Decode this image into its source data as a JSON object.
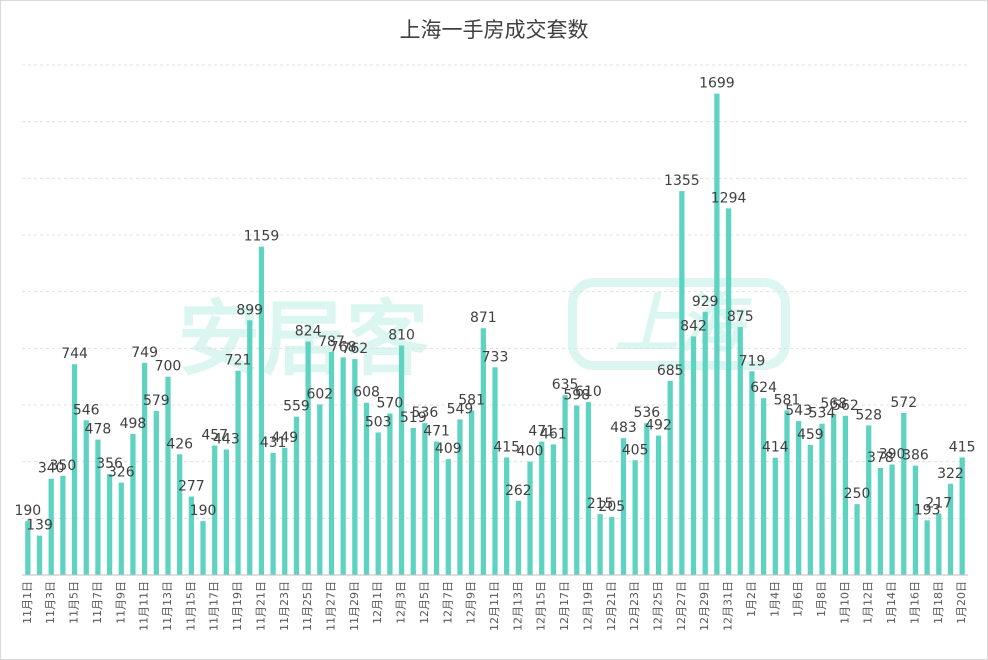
{
  "chart_data": {
    "type": "bar",
    "title": "上海一手房成交套数",
    "xlabel": "",
    "ylabel": "",
    "ylim": [
      0,
      1800
    ],
    "grid": true,
    "bar_color": "#5fd3c2",
    "categories": [
      "11月1日",
      "11月2日",
      "11月3日",
      "11月4日",
      "11月5日",
      "11月6日",
      "11月7日",
      "11月8日",
      "11月9日",
      "11月10日",
      "11月11日",
      "11月12日",
      "11月13日",
      "11月14日",
      "11月15日",
      "11月16日",
      "11月17日",
      "11月18日",
      "11月19日",
      "11月20日",
      "11月21日",
      "11月22日",
      "11月23日",
      "11月24日",
      "11月25日",
      "11月26日",
      "11月27日",
      "11月28日",
      "11月29日",
      "11月30日",
      "12月1日",
      "12月2日",
      "12月3日",
      "12月4日",
      "12月5日",
      "12月6日",
      "12月7日",
      "12月8日",
      "12月9日",
      "12月10日",
      "12月11日",
      "12月12日",
      "12月13日",
      "12月14日",
      "12月15日",
      "12月16日",
      "12月17日",
      "12月18日",
      "12月19日",
      "12月20日",
      "12月21日",
      "12月22日",
      "12月23日",
      "12月24日",
      "12月25日",
      "12月26日",
      "12月27日",
      "12月28日",
      "12月29日",
      "12月30日",
      "12月31日",
      "1月1日",
      "1月2日",
      "1月3日",
      "1月4日",
      "1月5日",
      "1月6日",
      "1月7日",
      "1月8日",
      "1月9日",
      "1月10日",
      "1月11日",
      "1月12日",
      "1月13日",
      "1月14日",
      "1月15日",
      "1月16日",
      "1月17日",
      "1月18日",
      "1月19日",
      "1月20日"
    ],
    "values": [
      190,
      139,
      340,
      350,
      744,
      546,
      478,
      356,
      326,
      498,
      749,
      579,
      700,
      426,
      277,
      190,
      457,
      443,
      721,
      899,
      1159,
      431,
      449,
      559,
      824,
      602,
      787,
      768,
      762,
      608,
      503,
      570,
      810,
      519,
      536,
      471,
      409,
      549,
      581,
      871,
      733,
      415,
      262,
      400,
      471,
      461,
      635,
      598,
      610,
      215,
      205,
      483,
      405,
      536,
      492,
      685,
      1355,
      842,
      929,
      1699,
      1294,
      875,
      719,
      624,
      414,
      581,
      543,
      459,
      534,
      568,
      562,
      250,
      528,
      378,
      390,
      572,
      386,
      193,
      217,
      322,
      415
    ],
    "tick_labels": [
      "11月1日",
      "11月3日",
      "11月5日",
      "11月7日",
      "11月9日",
      "11月11日",
      "11月13日",
      "11月15日",
      "11月17日",
      "11月19日",
      "11月21日",
      "11月23日",
      "11月25日",
      "11月27日",
      "11月29日",
      "12月1日",
      "12月3日",
      "12月5日",
      "12月7日",
      "12月9日",
      "12月11日",
      "12月13日",
      "12月15日",
      "12月17日",
      "12月19日",
      "12月21日",
      "12月23日",
      "12月25日",
      "12月27日",
      "12月29日",
      "12月31日",
      "1月2日",
      "1月4日",
      "1月6日",
      "1月8日",
      "1月10日",
      "1月12日",
      "1月14日",
      "1月16日",
      "1月18日",
      "1月20日"
    ]
  },
  "watermark": {
    "text": "安居客",
    "badge": "上海"
  }
}
